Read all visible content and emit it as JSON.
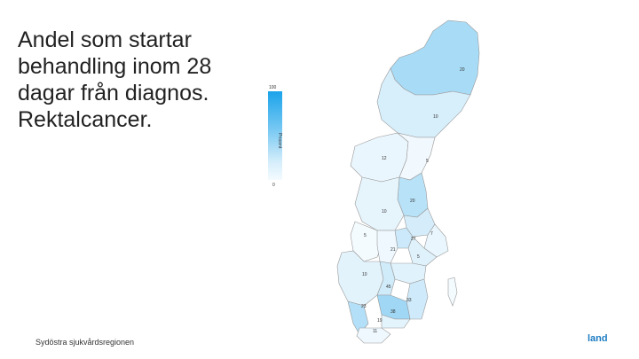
{
  "title_lines": [
    "Andel som startar",
    "behandling inom 28",
    "dagar från diagnos.",
    "Rektalcancer."
  ],
  "legend": {
    "max": "100",
    "min": "0",
    "unit": "Procent"
  },
  "colors": {
    "scale_high": "#1aa3ea",
    "scale_low": "#f4fbff",
    "region_border": "#9a9a9a"
  },
  "map_labels": [
    "20",
    "10",
    "12",
    "5",
    "20",
    "10",
    "5",
    "27",
    "7",
    "21",
    "5",
    "10",
    "45",
    "33",
    "23",
    "38",
    "19",
    "11"
  ],
  "footer": "Sydöstra sjukvårdsregionen",
  "brand_fragment": "land"
}
